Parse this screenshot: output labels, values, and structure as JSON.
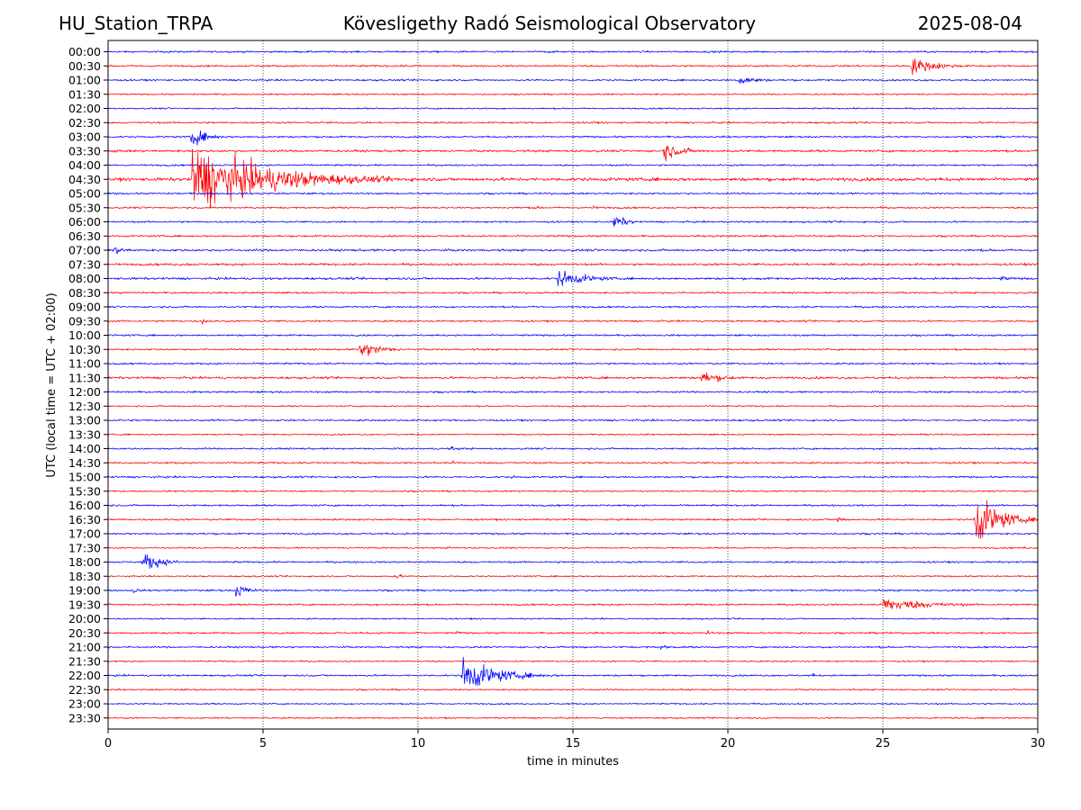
{
  "header": {
    "station": "HU_Station_TRPA",
    "observatory": "Kövesligethy Radó Seismological Observatory",
    "date": "2025-08-04"
  },
  "chart_data": {
    "type": "line",
    "title": "Kövesligethy Radó Seismological Observatory",
    "xlabel": "time in minutes",
    "ylabel": "UTC (local time = UTC + 02:00)",
    "xlim": [
      0,
      30
    ],
    "xticks": [
      0,
      5,
      10,
      15,
      20,
      25,
      30
    ],
    "grid": "vertical dotted at x ticks",
    "colors": [
      "#0000ff",
      "#ff0000"
    ],
    "rows": [
      "00:00",
      "00:30",
      "01:00",
      "01:30",
      "02:00",
      "02:30",
      "03:00",
      "03:30",
      "04:00",
      "04:30",
      "05:00",
      "05:30",
      "06:00",
      "06:30",
      "07:00",
      "07:30",
      "08:00",
      "08:30",
      "09:00",
      "09:30",
      "10:00",
      "10:30",
      "11:00",
      "11:30",
      "12:00",
      "12:30",
      "13:00",
      "13:30",
      "14:00",
      "14:30",
      "15:00",
      "15:30",
      "16:00",
      "16:30",
      "17:00",
      "17:30",
      "18:00",
      "18:30",
      "19:00",
      "19:30",
      "20:00",
      "20:30",
      "21:00",
      "21:30",
      "22:00",
      "22:30",
      "23:00",
      "23:30"
    ],
    "noise": [
      0.12,
      0.12,
      0.12,
      0.1,
      0.1,
      0.12,
      0.12,
      0.15,
      0.12,
      0.22,
      0.12,
      0.12,
      0.12,
      0.12,
      0.15,
      0.15,
      0.15,
      0.12,
      0.12,
      0.12,
      0.12,
      0.12,
      0.12,
      0.15,
      0.12,
      0.1,
      0.12,
      0.1,
      0.12,
      0.12,
      0.12,
      0.1,
      0.12,
      0.12,
      0.12,
      0.1,
      0.12,
      0.1,
      0.12,
      0.12,
      0.1,
      0.12,
      0.12,
      0.1,
      0.12,
      0.1,
      0.1,
      0.1
    ],
    "events": [
      {
        "row": "00:00",
        "x": 12.1,
        "amp": 0.2,
        "dur": 0.4
      },
      {
        "row": "00:00",
        "x": 14.2,
        "amp": 0.25,
        "dur": 0.4
      },
      {
        "row": "00:30",
        "x": 25.9,
        "amp": 1.2,
        "dur": 2.5
      },
      {
        "row": "01:00",
        "x": 20.3,
        "amp": 0.8,
        "dur": 1.8
      },
      {
        "row": "02:30",
        "x": 15.6,
        "amp": 0.3,
        "dur": 0.4
      },
      {
        "row": "03:00",
        "x": 2.65,
        "amp": 1.4,
        "dur": 1.5
      },
      {
        "row": "03:30",
        "x": 0.2,
        "amp": 0.35,
        "dur": 0.6
      },
      {
        "row": "03:30",
        "x": 17.9,
        "amp": 1.3,
        "dur": 1.8
      },
      {
        "row": "04:30",
        "x": 2.7,
        "amp": 4.6,
        "dur": 7.0
      },
      {
        "row": "05:30",
        "x": 13.7,
        "amp": 0.25,
        "dur": 1.5
      },
      {
        "row": "05:30",
        "x": 15.6,
        "amp": 0.3,
        "dur": 1.0
      },
      {
        "row": "06:00",
        "x": 16.3,
        "amp": 1.1,
        "dur": 1.2
      },
      {
        "row": "06:30",
        "x": 19.5,
        "amp": 0.2,
        "dur": 2.0
      },
      {
        "row": "07:00",
        "x": 0.15,
        "amp": 0.6,
        "dur": 1.5
      },
      {
        "row": "07:00",
        "x": 16.8,
        "amp": 0.35,
        "dur": 0.8
      },
      {
        "row": "07:30",
        "x": 2.5,
        "amp": 0.25,
        "dur": 1.5
      },
      {
        "row": "07:30",
        "x": 23.3,
        "amp": 0.3,
        "dur": 0.8
      },
      {
        "row": "08:00",
        "x": 14.5,
        "amp": 1.2,
        "dur": 2.8
      },
      {
        "row": "08:00",
        "x": 21.0,
        "amp": 0.4,
        "dur": 0.6
      },
      {
        "row": "08:00",
        "x": 28.8,
        "amp": 0.4,
        "dur": 1.2
      },
      {
        "row": "09:30",
        "x": 3.0,
        "amp": 0.45,
        "dur": 1.0
      },
      {
        "row": "10:30",
        "x": 8.1,
        "amp": 1.3,
        "dur": 2.0
      },
      {
        "row": "11:30",
        "x": 19.1,
        "amp": 1.0,
        "dur": 2.0
      },
      {
        "row": "11:30",
        "x": 12.5,
        "amp": 0.35,
        "dur": 0.3
      },
      {
        "row": "12:00",
        "x": 10.0,
        "amp": 0.2,
        "dur": 0.5
      },
      {
        "row": "13:00",
        "x": 3.5,
        "amp": 0.2,
        "dur": 2.5
      },
      {
        "row": "14:00",
        "x": 11.0,
        "amp": 0.35,
        "dur": 1.2
      },
      {
        "row": "14:00",
        "x": 19.9,
        "amp": 0.25,
        "dur": 0.5
      },
      {
        "row": "14:30",
        "x": 11.1,
        "amp": 0.5,
        "dur": 0.2
      },
      {
        "row": "15:00",
        "x": 13.0,
        "amp": 0.25,
        "dur": 1.0
      },
      {
        "row": "16:30",
        "x": 27.95,
        "amp": 3.8,
        "dur": 2.1
      },
      {
        "row": "16:30",
        "x": 23.5,
        "amp": 0.6,
        "dur": 0.8
      },
      {
        "row": "17:30",
        "x": 11.0,
        "amp": 0.3,
        "dur": 0.4
      },
      {
        "row": "17:30",
        "x": 29.5,
        "amp": 0.3,
        "dur": 0.4
      },
      {
        "row": "18:00",
        "x": 1.1,
        "amp": 1.4,
        "dur": 1.8
      },
      {
        "row": "18:30",
        "x": 9.2,
        "amp": 0.5,
        "dur": 0.8
      },
      {
        "row": "19:00",
        "x": 0.8,
        "amp": 0.5,
        "dur": 0.6
      },
      {
        "row": "19:00",
        "x": 4.1,
        "amp": 1.1,
        "dur": 1.2
      },
      {
        "row": "19:00",
        "x": 22.0,
        "amp": 0.3,
        "dur": 0.5
      },
      {
        "row": "19:30",
        "x": 25.0,
        "amp": 1.1,
        "dur": 4.0
      },
      {
        "row": "20:30",
        "x": 11.2,
        "amp": 0.3,
        "dur": 0.8
      },
      {
        "row": "20:30",
        "x": 19.3,
        "amp": 0.45,
        "dur": 0.6
      },
      {
        "row": "20:30",
        "x": 22.3,
        "amp": 0.3,
        "dur": 0.8
      },
      {
        "row": "21:00",
        "x": 15.3,
        "amp": 0.4,
        "dur": 0.5
      },
      {
        "row": "21:00",
        "x": 17.8,
        "amp": 0.35,
        "dur": 1.5
      },
      {
        "row": "22:00",
        "x": 11.4,
        "amp": 2.4,
        "dur": 3.2
      },
      {
        "row": "22:00",
        "x": 22.7,
        "amp": 0.4,
        "dur": 0.4
      },
      {
        "row": "23:30",
        "x": 25.7,
        "amp": 0.25,
        "dur": 0.6
      }
    ]
  }
}
